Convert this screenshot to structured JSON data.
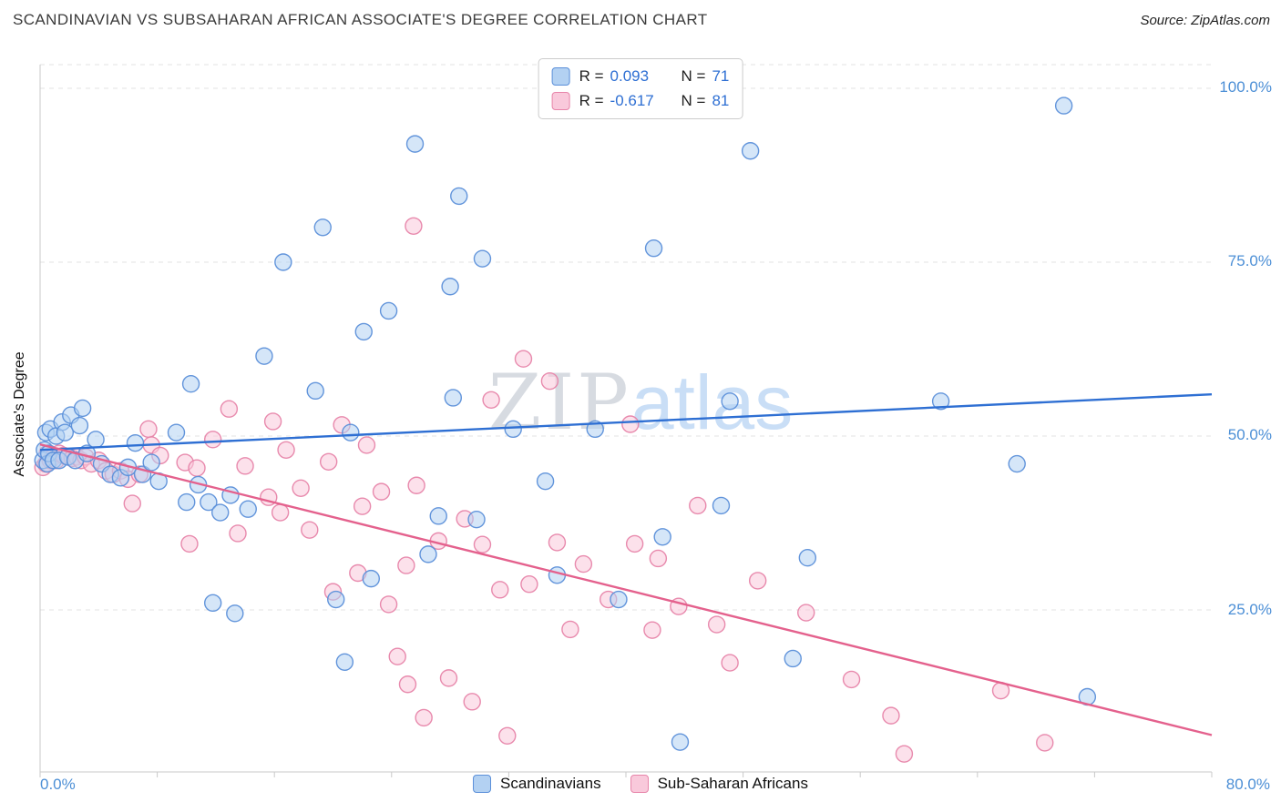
{
  "header": {
    "title": "SCANDINAVIAN VS SUBSAHARAN AFRICAN ASSOCIATE'S DEGREE CORRELATION CHART",
    "source": "Source: ZipAtlas.com"
  },
  "watermark": {
    "part1": "ZIP",
    "part2": "atlas"
  },
  "axes": {
    "y_label": "Associate's Degree",
    "x_min_label": "0.0%",
    "x_max_label": "80.0%"
  },
  "legend_box": {
    "rows": [
      {
        "r_label": "R =",
        "r_value": "0.093",
        "n_label": "N =",
        "n_value": "71"
      },
      {
        "r_label": "R =",
        "r_value": "-0.617",
        "n_label": "N =",
        "n_value": "81"
      }
    ]
  },
  "bottom_legend": {
    "items": [
      {
        "label": "Scandinavians"
      },
      {
        "label": "Sub-Saharan Africans"
      }
    ]
  },
  "colors": {
    "axis_label_blue": "#4c8fd6",
    "grid": "#e3e3e3",
    "axis": "#c9c9c9",
    "scandinavian_fill": "#b3d1f2",
    "scandinavian_stroke": "#5b8fd9",
    "african_fill": "#f9c9db",
    "african_stroke": "#e784a9",
    "scandinavian_trend": "#2e6fd3",
    "african_trend": "#e4618d"
  },
  "chart_data": {
    "type": "scatter",
    "title": "SCANDINAVIAN VS SUBSAHARAN AFRICAN ASSOCIATE'S DEGREE CORRELATION CHART",
    "ylabel": "Associate's Degree",
    "x_range": [
      0,
      80
    ],
    "y_range": [
      0,
      103.5
    ],
    "x_unit": "%",
    "y_unit": "%",
    "grid": "horizontal-dashed",
    "y_gridlines": [
      100,
      75,
      50,
      25
    ],
    "y_tick_labels": [
      "100.0%",
      "75.0%",
      "50.0%",
      "25.0%"
    ],
    "x_tick_labels": [
      "0.0%",
      "80.0%"
    ],
    "legend_position": "bottom-center",
    "series": [
      {
        "id": "scandinavians",
        "name": "Scandinavians",
        "R": 0.093,
        "N": 71,
        "fill": "#b3d1f2",
        "stroke": "#5b8fd9",
        "points": [
          [
            0.2,
            46.5
          ],
          [
            0.3,
            48
          ],
          [
            0.4,
            50.5
          ],
          [
            0.5,
            46
          ],
          [
            0.6,
            47.5
          ],
          [
            0.7,
            51
          ],
          [
            0.9,
            46.5
          ],
          [
            1.1,
            50
          ],
          [
            1.3,
            46.5
          ],
          [
            1.5,
            52
          ],
          [
            1.7,
            50.5
          ],
          [
            1.9,
            47
          ],
          [
            2.1,
            53
          ],
          [
            2.4,
            46.5
          ],
          [
            2.7,
            51.5
          ],
          [
            2.9,
            54
          ],
          [
            3.2,
            47.5
          ],
          [
            3.8,
            49.5
          ],
          [
            4.2,
            46
          ],
          [
            4.8,
            44.5
          ],
          [
            5.5,
            44
          ],
          [
            6.0,
            45.5
          ],
          [
            6.5,
            49
          ],
          [
            7.0,
            44.5
          ],
          [
            7.6,
            46.2
          ],
          [
            8.1,
            43.5
          ],
          [
            9.3,
            50.5
          ],
          [
            10.0,
            40.5
          ],
          [
            10.3,
            57.5
          ],
          [
            10.8,
            43
          ],
          [
            11.5,
            40.5
          ],
          [
            11.8,
            26
          ],
          [
            12.3,
            39
          ],
          [
            13.0,
            41.5
          ],
          [
            13.3,
            24.5
          ],
          [
            14.2,
            39.5
          ],
          [
            15.3,
            61.5
          ],
          [
            16.6,
            75
          ],
          [
            18.8,
            56.5
          ],
          [
            19.3,
            80
          ],
          [
            20.2,
            26.5
          ],
          [
            20.8,
            17.5
          ],
          [
            21.2,
            50.5
          ],
          [
            22.1,
            65
          ],
          [
            22.6,
            29.5
          ],
          [
            23.8,
            68
          ],
          [
            25.6,
            92
          ],
          [
            26.5,
            33
          ],
          [
            27.2,
            38.5
          ],
          [
            28.0,
            71.5
          ],
          [
            28.2,
            55.5
          ],
          [
            28.6,
            84.5
          ],
          [
            29.8,
            38
          ],
          [
            30.2,
            75.5
          ],
          [
            32.3,
            51
          ],
          [
            34.5,
            43.5
          ],
          [
            35.3,
            30
          ],
          [
            37.9,
            51
          ],
          [
            39.5,
            26.5
          ],
          [
            41.9,
            77
          ],
          [
            42.5,
            35.5
          ],
          [
            43.7,
            6
          ],
          [
            46.5,
            40
          ],
          [
            47.1,
            55
          ],
          [
            48.5,
            91
          ],
          [
            51.4,
            18
          ],
          [
            52.4,
            32.5
          ],
          [
            61.5,
            55
          ],
          [
            66.7,
            46
          ],
          [
            69.9,
            97.5
          ],
          [
            71.5,
            12.5
          ]
        ]
      },
      {
        "id": "sub-saharan-africans",
        "name": "Sub-Saharan Africans",
        "R": -0.617,
        "N": 81,
        "fill": "#f9c9db",
        "stroke": "#e784a9",
        "points": [
          [
            0.2,
            45.5
          ],
          [
            0.4,
            46
          ],
          [
            0.5,
            47.5
          ],
          [
            0.7,
            46.5
          ],
          [
            0.9,
            47
          ],
          [
            1.1,
            46.5
          ],
          [
            1.3,
            47.5
          ],
          [
            1.6,
            47.2
          ],
          [
            1.9,
            47
          ],
          [
            2.2,
            46.8
          ],
          [
            2.5,
            47
          ],
          [
            2.8,
            46.5
          ],
          [
            3.1,
            47
          ],
          [
            3.5,
            46
          ],
          [
            4.0,
            46.5
          ],
          [
            4.5,
            45
          ],
          [
            5.0,
            44.5
          ],
          [
            5.5,
            45
          ],
          [
            6.0,
            43.8
          ],
          [
            6.3,
            40.3
          ],
          [
            6.8,
            44.5
          ],
          [
            7.4,
            51
          ],
          [
            7.6,
            48.7
          ],
          [
            8.2,
            47.2
          ],
          [
            9.9,
            46.2
          ],
          [
            10.2,
            34.5
          ],
          [
            10.7,
            45.4
          ],
          [
            11.8,
            49.5
          ],
          [
            12.9,
            53.9
          ],
          [
            13.5,
            36
          ],
          [
            14.0,
            45.7
          ],
          [
            15.6,
            41.2
          ],
          [
            15.9,
            52.1
          ],
          [
            16.4,
            39
          ],
          [
            16.8,
            48.0
          ],
          [
            17.8,
            42.5
          ],
          [
            18.4,
            36.5
          ],
          [
            19.7,
            46.3
          ],
          [
            20.0,
            27.6
          ],
          [
            20.6,
            51.6
          ],
          [
            21.7,
            30.3
          ],
          [
            22.0,
            39.9
          ],
          [
            22.3,
            48.7
          ],
          [
            23.3,
            42
          ],
          [
            23.8,
            25.8
          ],
          [
            24.4,
            18.3
          ],
          [
            25.0,
            31.4
          ],
          [
            25.1,
            14.3
          ],
          [
            25.5,
            80.2
          ],
          [
            25.7,
            42.9
          ],
          [
            26.2,
            9.5
          ],
          [
            27.2,
            34.9
          ],
          [
            29.0,
            38.1
          ],
          [
            29.5,
            11.8
          ],
          [
            27.9,
            15.2
          ],
          [
            30.2,
            34.4
          ],
          [
            30.8,
            55.2
          ],
          [
            31.4,
            27.9
          ],
          [
            31.9,
            6.9
          ],
          [
            33.0,
            61.1
          ],
          [
            33.4,
            28.7
          ],
          [
            34.8,
            57.9
          ],
          [
            35.3,
            34.7
          ],
          [
            36.2,
            22.2
          ],
          [
            37.1,
            31.6
          ],
          [
            38.8,
            26.5
          ],
          [
            40.3,
            51.7
          ],
          [
            40.6,
            34.5
          ],
          [
            41.8,
            22.1
          ],
          [
            42.2,
            32.4
          ],
          [
            43.6,
            25.5
          ],
          [
            44.9,
            40
          ],
          [
            46.2,
            22.9
          ],
          [
            47.1,
            17.4
          ],
          [
            49.0,
            29.2
          ],
          [
            52.3,
            24.6
          ],
          [
            55.4,
            15.0
          ],
          [
            58.1,
            9.8
          ],
          [
            59.0,
            4.3
          ],
          [
            65.6,
            13.4
          ],
          [
            68.6,
            5.9
          ]
        ]
      }
    ],
    "trend_lines": [
      {
        "series": "scandinavians",
        "color": "#2e6fd3",
        "x_start": 0,
        "y_start": 48.0,
        "x_end": 80,
        "y_end": 56.0
      },
      {
        "series": "sub-saharan-africans",
        "color": "#e4618d",
        "x_start": 0,
        "y_start": 48.8,
        "x_end": 80,
        "y_end": 7.0
      }
    ]
  }
}
